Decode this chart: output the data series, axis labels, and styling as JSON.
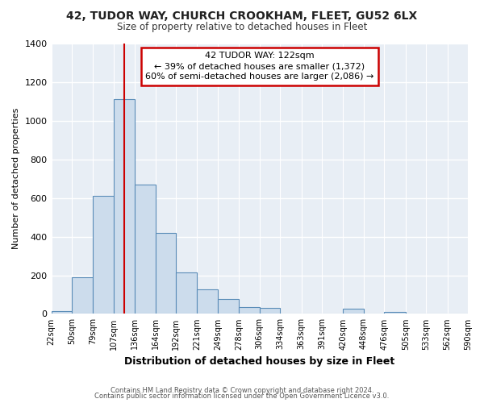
{
  "title1": "42, TUDOR WAY, CHURCH CROOKHAM, FLEET, GU52 6LX",
  "title2": "Size of property relative to detached houses in Fleet",
  "xlabel": "Distribution of detached houses by size in Fleet",
  "ylabel": "Number of detached properties",
  "bin_edges": [
    22,
    50,
    79,
    107,
    136,
    164,
    192,
    221,
    249,
    278,
    306,
    334,
    363,
    391,
    420,
    448,
    476,
    505,
    533,
    562,
    590
  ],
  "bar_heights": [
    15,
    190,
    610,
    1110,
    670,
    420,
    215,
    125,
    75,
    35,
    30,
    0,
    0,
    0,
    25,
    0,
    10,
    0,
    0,
    0
  ],
  "bar_color": "#ccdcec",
  "bar_edge_color": "#5b8db8",
  "property_line_x": 122,
  "property_line_color": "#cc0000",
  "annotation_line1": "42 TUDOR WAY: 122sqm",
  "annotation_line2": "← 39% of detached houses are smaller (1,372)",
  "annotation_line3": "60% of semi-detached houses are larger (2,086) →",
  "annotation_box_color": "white",
  "annotation_box_edge_color": "#cc0000",
  "ylim": [
    0,
    1400
  ],
  "yticks": [
    0,
    200,
    400,
    600,
    800,
    1000,
    1200,
    1400
  ],
  "xtick_labels": [
    "22sqm",
    "50sqm",
    "79sqm",
    "107sqm",
    "136sqm",
    "164sqm",
    "192sqm",
    "221sqm",
    "249sqm",
    "278sqm",
    "306sqm",
    "334sqm",
    "363sqm",
    "391sqm",
    "420sqm",
    "448sqm",
    "476sqm",
    "505sqm",
    "533sqm",
    "562sqm",
    "590sqm"
  ],
  "background_color": "#ffffff",
  "plot_bg_color": "#e8eef5",
  "grid_color": "#ffffff",
  "footer1": "Contains HM Land Registry data © Crown copyright and database right 2024.",
  "footer2": "Contains public sector information licensed under the Open Government Licence v3.0."
}
